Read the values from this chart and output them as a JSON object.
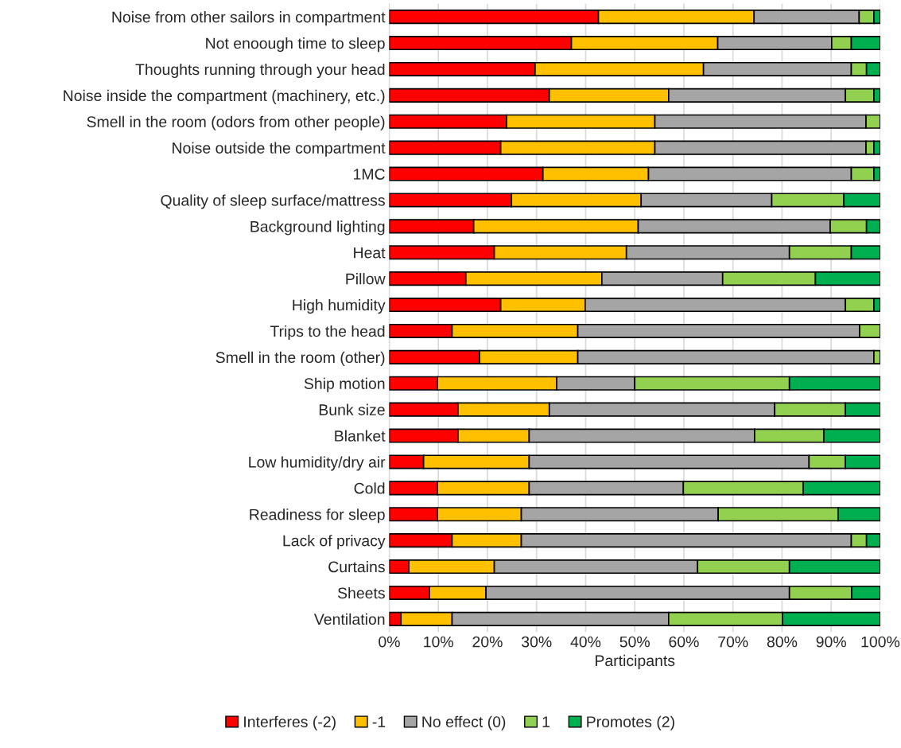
{
  "chart_data": {
    "type": "bar",
    "orientation": "horizontal",
    "stacked": true,
    "xlabel": "Participants",
    "categories": [
      "Noise from other sailors in compartment",
      "Not enoough time to sleep",
      "Thoughts running through your head",
      "Noise inside the compartment (machinery, etc.)",
      "Smell in the room (odors from other people)",
      "Noise outside the compartment",
      "1MC",
      "Quality of sleep surface/mattress",
      "Background lighting",
      "Heat",
      "Pillow",
      "High humidity",
      "Trips to the head",
      "Smell in the room (other)",
      "Ship motion",
      "Bunk size",
      "Blanket",
      "Low humidity/dry air",
      "Cold",
      "Readiness for sleep",
      "Lack of privacy",
      "Curtains",
      "Sheets",
      "Ventilation"
    ],
    "series": [
      {
        "name": "Interferes (-2)",
        "color": "#ff0000",
        "values": [
          42.6,
          37.1,
          29.7,
          32.6,
          23.9,
          22.7,
          31.3,
          24.9,
          17.2,
          21.4,
          15.6,
          22.7,
          12.8,
          18.4,
          9.8,
          14.0,
          14.0,
          7.0,
          9.8,
          9.8,
          12.8,
          4.0,
          8.2,
          2.4
        ]
      },
      {
        "name": "-1",
        "color": "#ffc000",
        "values": [
          31.7,
          29.8,
          34.3,
          24.3,
          30.2,
          31.4,
          21.5,
          26.4,
          33.5,
          26.9,
          27.7,
          17.2,
          25.6,
          20.0,
          24.3,
          18.6,
          14.5,
          21.5,
          18.7,
          17.1,
          14.1,
          17.4,
          11.5,
          10.4
        ]
      },
      {
        "name": "No effect (0)",
        "color": "#a5a5a5",
        "values": [
          21.4,
          23.2,
          30.1,
          36.0,
          43.0,
          43.0,
          41.3,
          26.6,
          39.1,
          33.2,
          24.6,
          53.0,
          57.4,
          60.3,
          15.9,
          45.9,
          45.9,
          57.0,
          31.4,
          40.1,
          67.2,
          41.4,
          61.8,
          44.1
        ]
      },
      {
        "name": "1",
        "color": "#92d050",
        "values": [
          3.0,
          4.0,
          3.1,
          5.8,
          2.9,
          1.6,
          4.6,
          14.7,
          7.4,
          12.6,
          18.9,
          5.8,
          4.2,
          1.3,
          31.5,
          14.4,
          14.1,
          7.4,
          24.4,
          24.4,
          3.1,
          18.7,
          12.7,
          23.2
        ]
      },
      {
        "name": "Promotes (2)",
        "color": "#00b050",
        "values": [
          1.3,
          5.9,
          2.8,
          1.3,
          null,
          1.3,
          1.3,
          7.4,
          2.8,
          5.9,
          13.2,
          1.3,
          null,
          null,
          18.5,
          7.1,
          11.5,
          7.1,
          15.7,
          8.6,
          2.8,
          18.5,
          5.8,
          19.9
        ]
      }
    ],
    "xlim": [
      0,
      100
    ],
    "xticks": [
      {
        "value": 0,
        "label": "0%"
      },
      {
        "value": 10,
        "label": "10%"
      },
      {
        "value": 20,
        "label": "20%"
      },
      {
        "value": 30,
        "label": "30%"
      },
      {
        "value": 40,
        "label": "40%"
      },
      {
        "value": 50,
        "label": "50%"
      },
      {
        "value": 60,
        "label": "60%"
      },
      {
        "value": 70,
        "label": "70%"
      },
      {
        "value": 80,
        "label": "80%"
      },
      {
        "value": 90,
        "label": "90%"
      },
      {
        "value": 100,
        "label": "100%"
      }
    ],
    "grid": "x",
    "legend": "bottom"
  }
}
